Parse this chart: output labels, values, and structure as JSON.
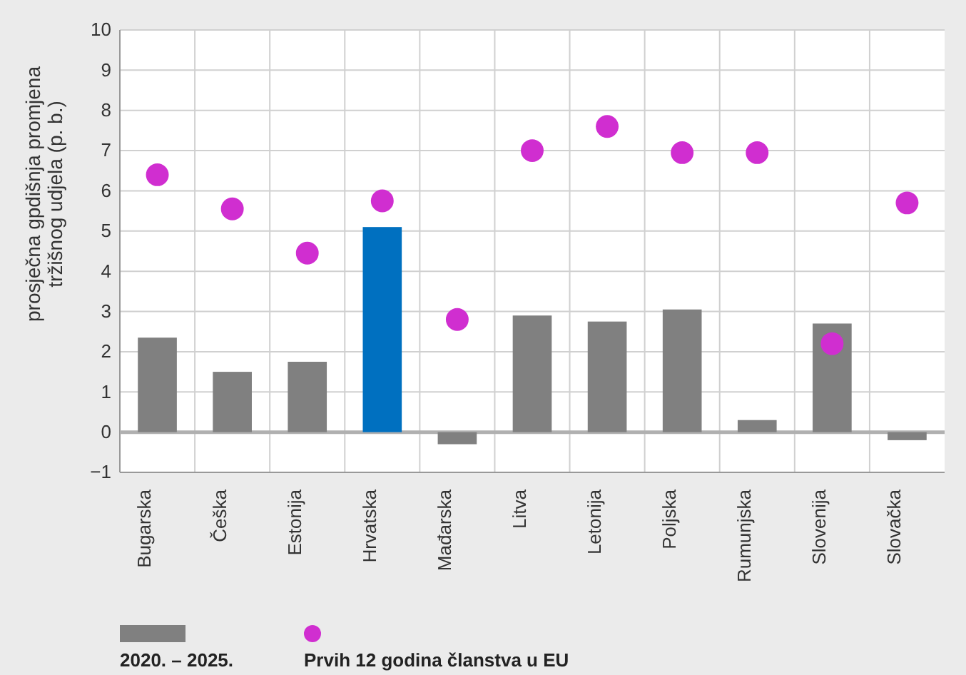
{
  "chart_data": {
    "type": "bar",
    "ylabel": "prosječna gpdišnja promjena tržišnog udjela (p. b.)",
    "categories": [
      "Bugarska",
      "Češka",
      "Estonija",
      "Hrvatska",
      "Mađarska",
      "Litva",
      "Letonija",
      "Poljska",
      "Rumunjska",
      "Slovenija",
      "Slovačka"
    ],
    "series": [
      {
        "name": "2020. – 2025.",
        "color": "#808080",
        "colors": [
          "#808080",
          "#808080",
          "#808080",
          "#0070c0",
          "#808080",
          "#808080",
          "#808080",
          "#808080",
          "#808080",
          "#808080",
          "#808080"
        ],
        "values": [
          2.35,
          1.5,
          1.75,
          5.1,
          -0.3,
          2.9,
          2.75,
          3.05,
          0.3,
          2.7,
          -0.2
        ]
      },
      {
        "name": "Prvih 12 godina članstva u EU",
        "type": "scatter",
        "color": "#d02ed0",
        "values": [
          6.4,
          5.55,
          4.45,
          5.75,
          2.8,
          7.0,
          7.6,
          6.95,
          6.95,
          2.2,
          5.7
        ]
      }
    ],
    "ylim": [
      -1,
      10
    ],
    "yticks": [
      {
        "value": -1,
        "label": "−1"
      },
      0,
      1,
      2,
      3,
      4,
      5,
      6,
      7,
      8,
      9,
      10
    ],
    "ref_lines": [
      {
        "axis": "y",
        "value": 0,
        "color": "#b0b0b0"
      }
    ],
    "grid": true,
    "legend": "bottom",
    "marker": "circle"
  }
}
